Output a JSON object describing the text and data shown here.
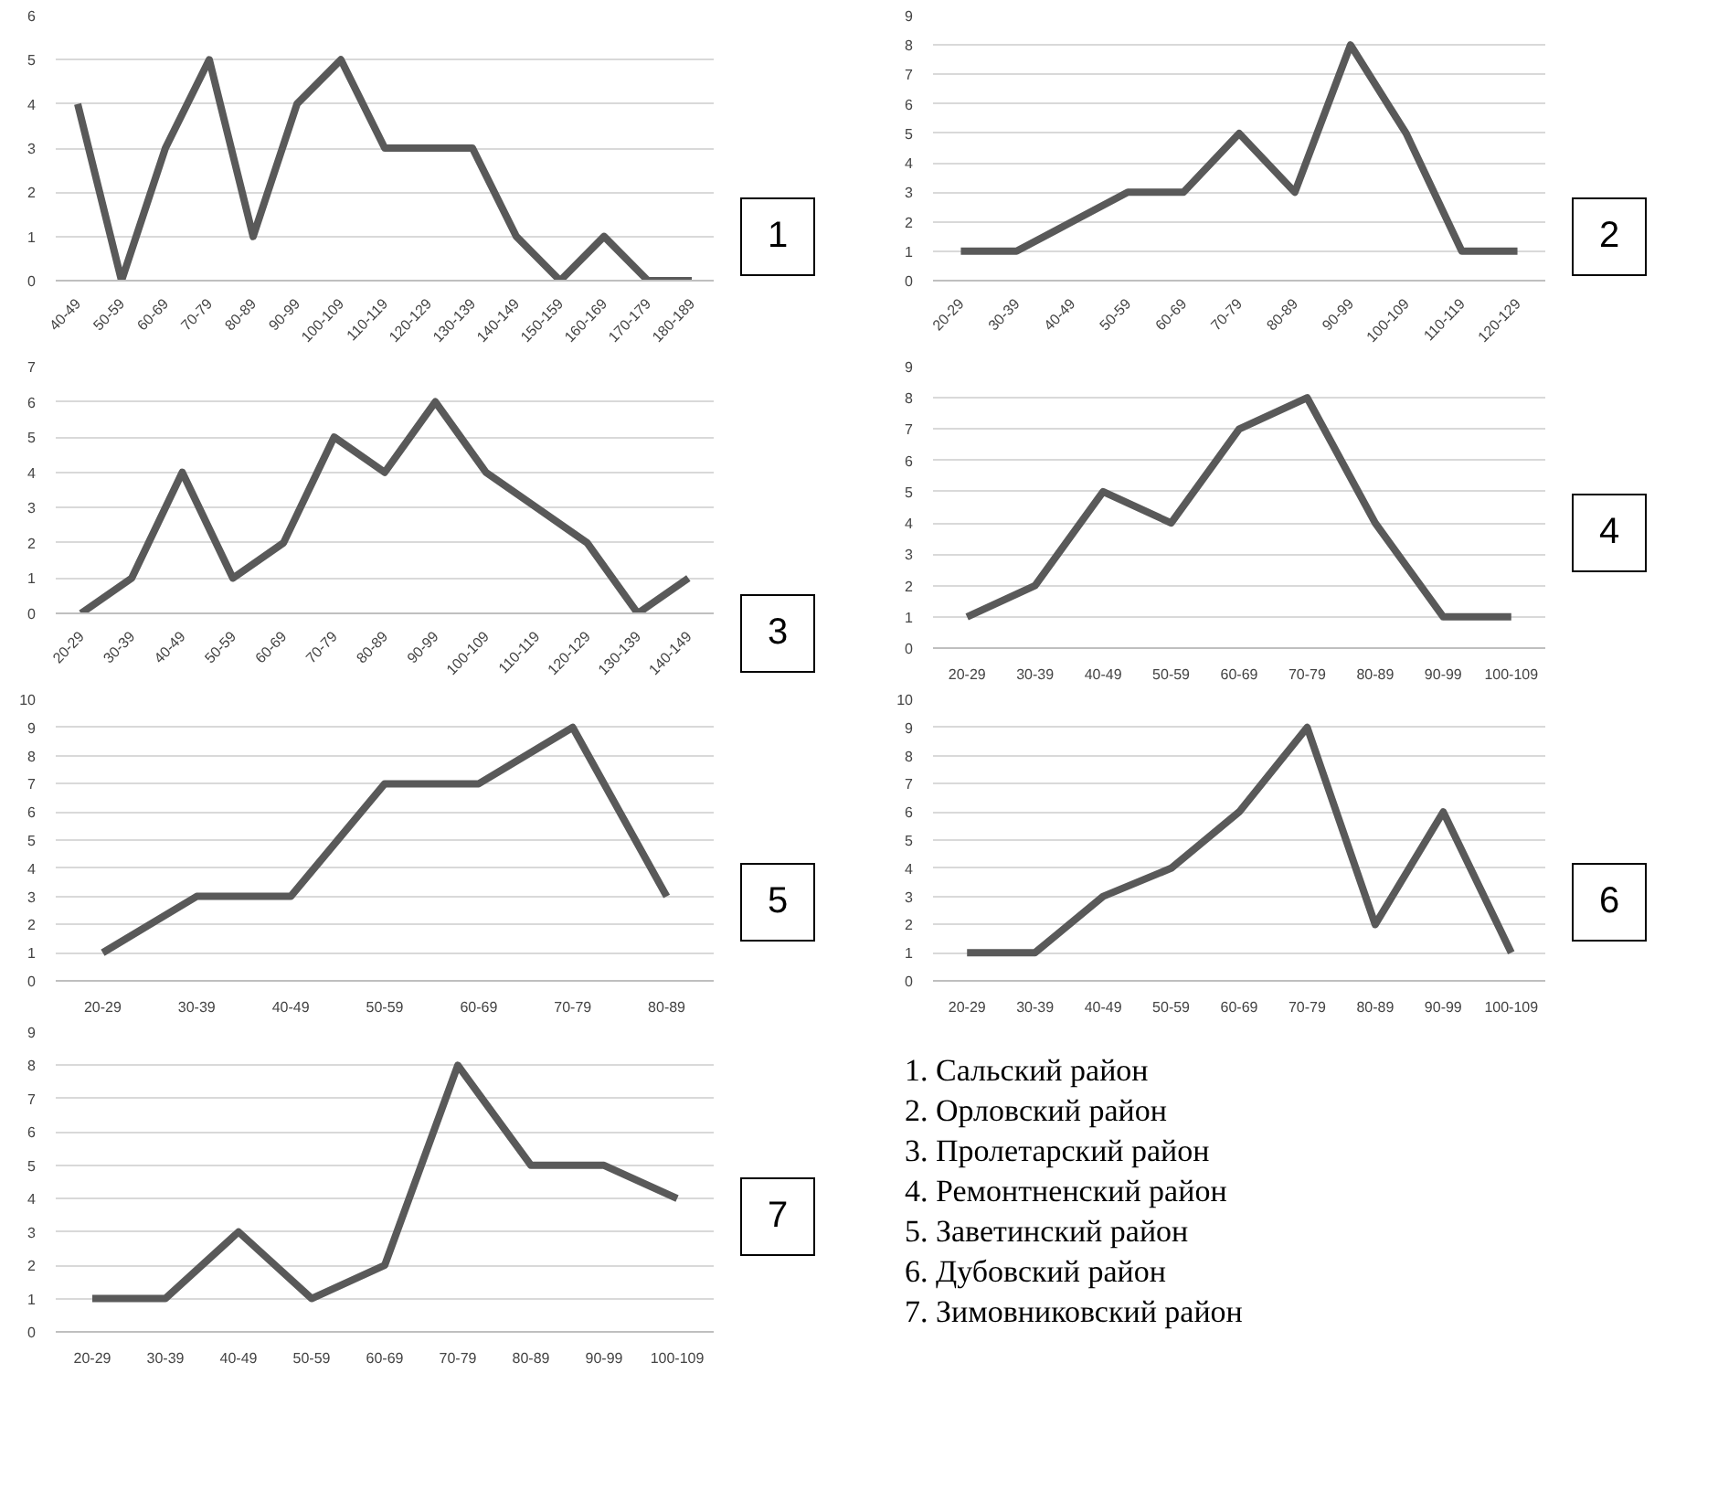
{
  "chart_data": [
    {
      "type": "line",
      "categories": [
        "40-49",
        "50-59",
        "60-69",
        "70-79",
        "80-89",
        "90-99",
        "100-109",
        "110-119",
        "120-129",
        "130-139",
        "140-149",
        "150-159",
        "160-169",
        "170-179",
        "180-189"
      ],
      "values": [
        4,
        0,
        3,
        5,
        1,
        4,
        5,
        3,
        3,
        3,
        1,
        0,
        1,
        0,
        0
      ],
      "color": "#595959",
      "ylim": [
        0,
        6
      ],
      "yticks": [
        0,
        1,
        2,
        3,
        4,
        5,
        6
      ],
      "grid": "y",
      "annotations": [
        "1"
      ]
    },
    {
      "type": "line",
      "categories": [
        "20-29",
        "30-39",
        "40-49",
        "50-59",
        "60-69",
        "70-79",
        "80-89",
        "90-99",
        "100-109",
        "110-119",
        "120-129"
      ],
      "values": [
        1,
        1,
        2,
        3,
        3,
        5,
        3,
        8,
        5,
        1,
        1
      ],
      "color": "#595959",
      "ylim": [
        0,
        9
      ],
      "yticks": [
        0,
        1,
        2,
        3,
        4,
        5,
        6,
        7,
        8,
        9
      ],
      "grid": "y",
      "annotations": [
        "2"
      ]
    },
    {
      "type": "line",
      "categories": [
        "20-29",
        "30-39",
        "40-49",
        "50-59",
        "60-69",
        "70-79",
        "80-89",
        "90-99",
        "100-109",
        "110-119",
        "120-129",
        "130-139",
        "140-149"
      ],
      "values": [
        0,
        1,
        4,
        1,
        2,
        5,
        4,
        6,
        4,
        3,
        2,
        0,
        1
      ],
      "color": "#595959",
      "ylim": [
        0,
        7
      ],
      "yticks": [
        0,
        1,
        2,
        3,
        4,
        5,
        6,
        7
      ],
      "grid": "y",
      "annotations": [
        "3"
      ]
    },
    {
      "type": "line",
      "categories": [
        "20-29",
        "30-39",
        "40-49",
        "50-59",
        "60-69",
        "70-79",
        "80-89",
        "90-99",
        "100-109"
      ],
      "values": [
        1,
        2,
        5,
        4,
        7,
        8,
        4,
        1,
        1
      ],
      "color": "#595959",
      "ylim": [
        0,
        9
      ],
      "yticks": [
        0,
        1,
        2,
        3,
        4,
        5,
        6,
        7,
        8,
        9
      ],
      "grid": "y",
      "annotations": [
        "4"
      ]
    },
    {
      "type": "line",
      "categories": [
        "20-29",
        "30-39",
        "40-49",
        "50-59",
        "60-69",
        "70-79",
        "80-89"
      ],
      "values": [
        1,
        3,
        3,
        7,
        7,
        9,
        3
      ],
      "color": "#595959",
      "ylim": [
        0,
        10
      ],
      "yticks": [
        0,
        1,
        2,
        3,
        4,
        5,
        6,
        7,
        8,
        9,
        10
      ],
      "grid": "y",
      "annotations": [
        "5"
      ]
    },
    {
      "type": "line",
      "categories": [
        "20-29",
        "30-39",
        "40-49",
        "50-59",
        "60-69",
        "70-79",
        "80-89",
        "90-99",
        "100-109"
      ],
      "values": [
        1,
        1,
        3,
        4,
        6,
        9,
        2,
        6,
        1
      ],
      "color": "#595959",
      "ylim": [
        0,
        10
      ],
      "yticks": [
        0,
        1,
        2,
        3,
        4,
        5,
        6,
        7,
        8,
        9,
        10
      ],
      "grid": "y",
      "annotations": [
        "6"
      ]
    },
    {
      "type": "line",
      "categories": [
        "20-29",
        "30-39",
        "40-49",
        "50-59",
        "60-69",
        "70-79",
        "80-89",
        "90-99",
        "100-109"
      ],
      "values": [
        1,
        1,
        3,
        1,
        2,
        8,
        5,
        5,
        4
      ],
      "color": "#595959",
      "ylim": [
        0,
        9
      ],
      "yticks": [
        0,
        1,
        2,
        3,
        4,
        5,
        6,
        7,
        8,
        9
      ],
      "grid": "y",
      "annotations": [
        "7"
      ]
    },
    {
      "type": "other",
      "annotations": [
        "1. Сальский район",
        "2. Орловский район",
        "3. Пролетарский район",
        "4. Ремонтненский район",
        "5. Заветинский район",
        "6. Дубовский район",
        "7. Зимовниковский район"
      ]
    }
  ]
}
